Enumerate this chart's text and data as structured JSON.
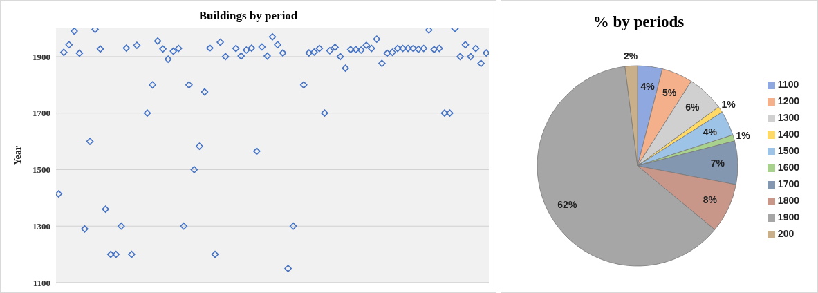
{
  "chart_data": [
    {
      "type": "scatter",
      "title": "Buildings by period",
      "ylabel": "Year",
      "categories": [
        null,
        null,
        null,
        null,
        null,
        null,
        null,
        null,
        null,
        null,
        null,
        null,
        null,
        null,
        null,
        null,
        null,
        null,
        null,
        null,
        null,
        null,
        null,
        null,
        null,
        null,
        null,
        null,
        null,
        null,
        null,
        null,
        null,
        null,
        null,
        null,
        null,
        null,
        null,
        null,
        null,
        null,
        null,
        null,
        null,
        null,
        null,
        null,
        null,
        null,
        null,
        null,
        null,
        null,
        null,
        null,
        null,
        null,
        null,
        null,
        null,
        null,
        null,
        null,
        null,
        null,
        null,
        null,
        null,
        null,
        null,
        null,
        null,
        null,
        null,
        null,
        null,
        null,
        null,
        null,
        null,
        null,
        null
      ],
      "values": [
        1414,
        1915,
        1942,
        1990,
        1912,
        1290,
        1600,
        1996,
        1927,
        1360,
        1200,
        1200,
        1300,
        1930,
        1200,
        1940,
        null,
        1700,
        1800,
        1955,
        1927,
        1891,
        1919,
        1929,
        1300,
        1800,
        1500,
        1583,
        1775,
        1930,
        1200,
        1951,
        1900,
        null,
        1929,
        1902,
        1923,
        1930,
        1565,
        1934,
        1902,
        1970,
        1942,
        1913,
        1150,
        1300,
        null,
        1800,
        1913,
        1916,
        1929,
        1700,
        1921,
        1933,
        1900,
        1859,
        1925,
        1925,
        1923,
        1940,
        1929,
        1962,
        1876,
        1912,
        1915,
        1929,
        1929,
        1929,
        1929,
        1926,
        1929,
        1994,
        1925,
        1929,
        1700,
        1700,
        1999,
        1900,
        1942,
        1900,
        1929,
        1876,
        1913
      ],
      "color": "#4472c4",
      "marker": "diamond",
      "ylim": [
        1100,
        2000
      ],
      "yticks": [
        1100,
        1300,
        1500,
        1700,
        1900
      ],
      "grid": "y",
      "tick_labels": "y"
    },
    {
      "type": "pie",
      "title": "% by periods",
      "categories": [
        "1100",
        "1200",
        "1300",
        "1400",
        "1500",
        "1600",
        "1700",
        "1800",
        "1900",
        "200"
      ],
      "values": [
        4,
        5,
        6,
        1,
        4,
        1,
        7,
        8,
        62,
        2
      ],
      "colors": [
        "#8fa8e0",
        "#f4b08a",
        "#d0d0d0",
        "#ffd966",
        "#9dc3e6",
        "#a9d18e",
        "#8497b0",
        "#c9978a",
        "#a6a6a6",
        "#c9b08a"
      ],
      "value_labels": [
        "4%",
        "5%",
        "6%",
        "1%",
        "4%",
        "1%",
        "7%",
        "8%",
        "62%",
        "2%"
      ],
      "legend": "right"
    }
  ]
}
